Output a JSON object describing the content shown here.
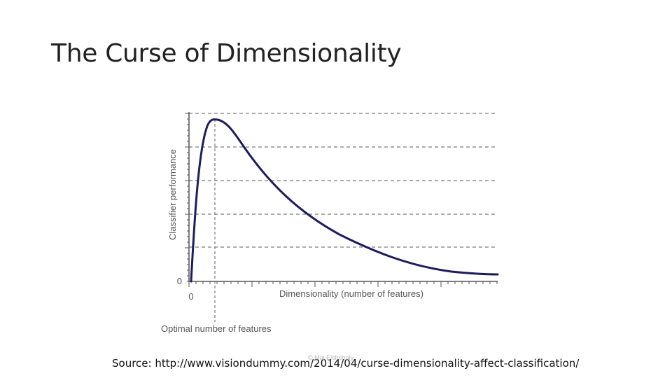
{
  "slide": {
    "title": "The Curse of Dimensionality",
    "source": "Source: http://www.visiondummy.com/2014/04/curse-dimensionality-affect-classification/",
    "watermark": "© Mai Elshehaly"
  },
  "figure": {
    "ylabel": "Classifier performance",
    "xlabel": "Dimensionality (number of features)",
    "annotation": "Optimal number of features",
    "origin_x": "0",
    "origin_y": "0",
    "colors": {
      "curve": "#1d1d5e",
      "axis": "#555555",
      "grid": "#7a7a7a",
      "text": "#555555"
    }
  }
}
